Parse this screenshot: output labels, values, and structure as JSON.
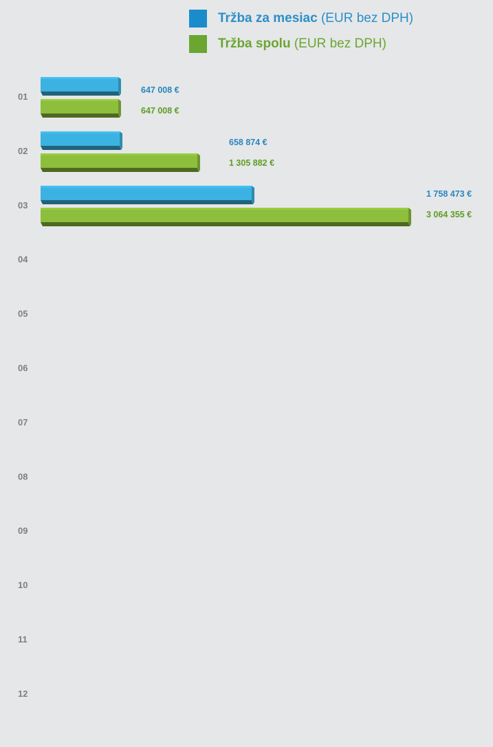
{
  "legend": [
    {
      "bold": "Tržba za mesiac",
      "rest": " (EUR bez DPH)",
      "color": "#2b8fc9",
      "swatch": "#1a8ccb"
    },
    {
      "bold": "Tržba spolu",
      "rest": " (EUR bez DPH)",
      "color": "#6aa630",
      "swatch": "#6aa630"
    }
  ],
  "chart_data": {
    "type": "bar",
    "orientation": "horizontal",
    "categories": [
      "01",
      "02",
      "03",
      "04",
      "05",
      "06",
      "07",
      "08",
      "09",
      "10",
      "11",
      "12"
    ],
    "series": [
      {
        "name": "Tržba za mesiac (EUR bez DPH)",
        "values": [
          647008,
          658874,
          1758473,
          null,
          null,
          null,
          null,
          null,
          null,
          null,
          null,
          null
        ],
        "labels": [
          "647 008 €",
          "658 874 €",
          "1 758 473 €"
        ],
        "color": "#3cb2e2",
        "label_color": "#2b86c0"
      },
      {
        "name": "Tržba spolu (EUR bez DPH)",
        "values": [
          647008,
          1305882,
          3064355,
          null,
          null,
          null,
          null,
          null,
          null,
          null,
          null,
          null
        ],
        "labels": [
          "647 008 €",
          "1 305 882 €",
          "3 064 355 €"
        ],
        "color": "#8dbe3c",
        "label_color": "#5e9d26"
      }
    ],
    "xlim": [
      0,
      3064355
    ],
    "grid": false,
    "legend_position": "top"
  }
}
